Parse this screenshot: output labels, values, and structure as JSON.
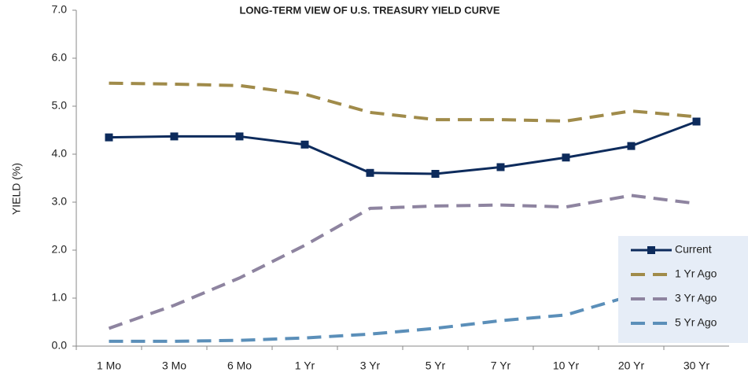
{
  "chart_data": {
    "type": "line",
    "title": "LONG-TERM VIEW OF U.S. TREASURY YIELD CURVE",
    "y_label": "YIELD (%)",
    "categories": [
      "1 Mo",
      "3 Mo",
      "6 Mo",
      "1 Yr",
      "3 Yr",
      "5 Yr",
      "7 Yr",
      "10 Yr",
      "20 Yr",
      "30 Yr"
    ],
    "series": [
      {
        "name": "Current",
        "color": "#0d2b5c",
        "dash": false,
        "marker": true,
        "values": [
          4.35,
          4.37,
          4.37,
          4.2,
          3.61,
          3.59,
          3.73,
          3.93,
          4.17,
          4.68
        ]
      },
      {
        "name": "1 Yr Ago",
        "color": "#a08b4a",
        "dash": true,
        "marker": false,
        "values": [
          5.48,
          5.46,
          5.43,
          5.25,
          4.87,
          4.72,
          4.72,
          4.69,
          4.9,
          4.78
        ]
      },
      {
        "name": "3 Yr Ago",
        "color": "#8e84a0",
        "dash": true,
        "marker": false,
        "values": [
          0.37,
          0.85,
          1.42,
          2.1,
          2.87,
          2.92,
          2.94,
          2.9,
          3.14,
          2.97
        ]
      },
      {
        "name": "5 Yr Ago",
        "color": "#5b8fb9",
        "dash": true,
        "marker": false,
        "values": [
          0.1,
          0.1,
          0.12,
          0.17,
          0.25,
          0.37,
          0.53,
          0.65,
          1.05,
          1.3
        ]
      }
    ],
    "ylim": [
      0,
      7
    ],
    "yticks": [
      {
        "value": 0,
        "label": "0.0"
      },
      {
        "value": 1,
        "label": "1.0"
      },
      {
        "value": 2,
        "label": "2.0"
      },
      {
        "value": 3,
        "label": "3.0"
      },
      {
        "value": 4,
        "label": "4.0"
      },
      {
        "value": 5,
        "label": "5.0"
      },
      {
        "value": 6,
        "label": "6.0"
      },
      {
        "value": 7,
        "label": "7.0"
      }
    ],
    "legend": "bottom-right"
  }
}
